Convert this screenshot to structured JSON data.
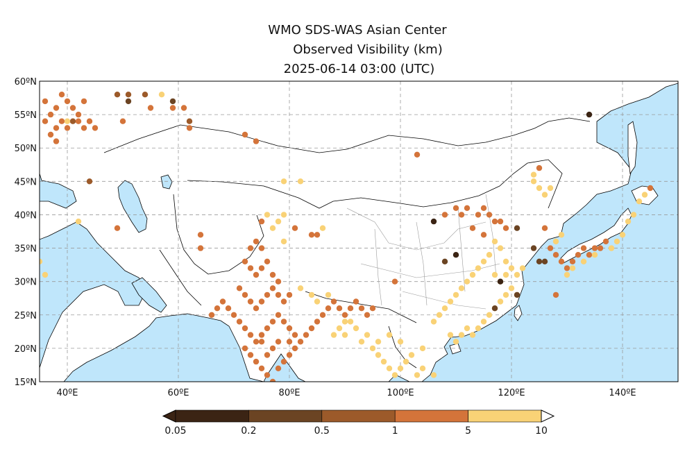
{
  "title": {
    "line1": "WMO SDS-WAS Asian Center",
    "line2": "Observed Visibility (km)",
    "line3": "2025-06-14 03:00 (UTC)"
  },
  "map": {
    "lon_range": [
      35,
      150
    ],
    "lat_range": [
      15,
      60
    ],
    "lat_ticks": [
      {
        "value": 60,
        "label": "60ºN"
      },
      {
        "value": 55,
        "label": "55ºN"
      },
      {
        "value": 50,
        "label": "50ºN"
      },
      {
        "value": 45,
        "label": "45ºN"
      },
      {
        "value": 40,
        "label": "40ºN"
      },
      {
        "value": 35,
        "label": "35ºN"
      },
      {
        "value": 30,
        "label": "30ºN"
      },
      {
        "value": 25,
        "label": "25ºN"
      },
      {
        "value": 20,
        "label": "20ºN"
      },
      {
        "value": 15,
        "label": "15ºN"
      }
    ],
    "lon_ticks": [
      {
        "value": 40,
        "label": "40ºE"
      },
      {
        "value": 60,
        "label": "60ºE"
      },
      {
        "value": 80,
        "label": "80ºE"
      },
      {
        "value": 100,
        "label": "100ºE"
      },
      {
        "value": 120,
        "label": "120ºE"
      },
      {
        "value": 140,
        "label": "140ºE"
      }
    ],
    "ocean_color": "#bfe6fb",
    "land_color": "#ffffff"
  },
  "legend": {
    "labels": [
      "0.05",
      "0.2",
      "0.5",
      "1",
      "5",
      "10"
    ],
    "colors": [
      "#3b2414",
      "#6b4423",
      "#9c5a2a",
      "#d4743a",
      "#f9d276"
    ]
  },
  "chart_data": {
    "type": "scatter",
    "title": "Observed Visibility (km)",
    "xlabel": "",
    "ylabel": "",
    "xlim": [
      35,
      150
    ],
    "ylim": [
      15,
      60
    ],
    "categories": [
      "<0.2",
      "0.2-0.5",
      "0.5-1",
      "1-5",
      "5-10"
    ],
    "colors": [
      "#3b2414",
      "#6b4423",
      "#9c5a2a",
      "#d4743a",
      "#f9d276"
    ],
    "points": [
      [
        36,
        57,
        3
      ],
      [
        37,
        55,
        3
      ],
      [
        38,
        56,
        3
      ],
      [
        39,
        58,
        3
      ],
      [
        40,
        57,
        3
      ],
      [
        41,
        56,
        3
      ],
      [
        42,
        55,
        3
      ],
      [
        43,
        57,
        3
      ],
      [
        37,
        52,
        3
      ],
      [
        38,
        53,
        3
      ],
      [
        39,
        54,
        3
      ],
      [
        40,
        53,
        3
      ],
      [
        41,
        54,
        2
      ],
      [
        42,
        54,
        3
      ],
      [
        43,
        53,
        3
      ],
      [
        44,
        54,
        3
      ],
      [
        45,
        53,
        3
      ],
      [
        36,
        54,
        3
      ],
      [
        38,
        51,
        3
      ],
      [
        40,
        54,
        4
      ],
      [
        44,
        45,
        2
      ],
      [
        42,
        39,
        4
      ],
      [
        49,
        58,
        2
      ],
      [
        51,
        58,
        2
      ],
      [
        51,
        57,
        1
      ],
      [
        54,
        58,
        2
      ],
      [
        55,
        56,
        3
      ],
      [
        57,
        58,
        4
      ],
      [
        59,
        57,
        1
      ],
      [
        59,
        56,
        3
      ],
      [
        61,
        56,
        3
      ],
      [
        62,
        53,
        3
      ],
      [
        62,
        54,
        2
      ],
      [
        72,
        52,
        3
      ],
      [
        74,
        51,
        3
      ],
      [
        49,
        38,
        3
      ],
      [
        50,
        54,
        3
      ],
      [
        35,
        33,
        4
      ],
      [
        36,
        31,
        4
      ],
      [
        103,
        49,
        3
      ],
      [
        79,
        45,
        4
      ],
      [
        82,
        45,
        4
      ],
      [
        81,
        38,
        3
      ],
      [
        84,
        37,
        3
      ],
      [
        85,
        37,
        3
      ],
      [
        86,
        38,
        4
      ],
      [
        79,
        40,
        4
      ],
      [
        78,
        39,
        4
      ],
      [
        76,
        40,
        4
      ],
      [
        77,
        38,
        4
      ],
      [
        79,
        36,
        4
      ],
      [
        75,
        39,
        3
      ],
      [
        64,
        37,
        3
      ],
      [
        64,
        35,
        3
      ],
      [
        73,
        35,
        3
      ],
      [
        74,
        36,
        3
      ],
      [
        75,
        35,
        3
      ],
      [
        72,
        33,
        3
      ],
      [
        73,
        32,
        3
      ],
      [
        74,
        31,
        3
      ],
      [
        75,
        32,
        3
      ],
      [
        76,
        33,
        3
      ],
      [
        77,
        31,
        3
      ],
      [
        78,
        30,
        3
      ],
      [
        71,
        29,
        3
      ],
      [
        72,
        28,
        3
      ],
      [
        73,
        27,
        3
      ],
      [
        74,
        26,
        3
      ],
      [
        75,
        27,
        3
      ],
      [
        76,
        28,
        3
      ],
      [
        77,
        29,
        3
      ],
      [
        78,
        28,
        3
      ],
      [
        79,
        27,
        3
      ],
      [
        80,
        28,
        3
      ],
      [
        69,
        26,
        3
      ],
      [
        70,
        25,
        3
      ],
      [
        71,
        24,
        3
      ],
      [
        72,
        23,
        3
      ],
      [
        73,
        22,
        3
      ],
      [
        74,
        21,
        3
      ],
      [
        75,
        22,
        3
      ],
      [
        76,
        23,
        3
      ],
      [
        77,
        24,
        3
      ],
      [
        78,
        25,
        3
      ],
      [
        79,
        24,
        3
      ],
      [
        80,
        23,
        3
      ],
      [
        81,
        22,
        3
      ],
      [
        82,
        21,
        3
      ],
      [
        83,
        22,
        3
      ],
      [
        84,
        23,
        3
      ],
      [
        85,
        24,
        3
      ],
      [
        86,
        25,
        3
      ],
      [
        87,
        26,
        3
      ],
      [
        88,
        27,
        3
      ],
      [
        89,
        26,
        3
      ],
      [
        90,
        25,
        3
      ],
      [
        91,
        26,
        3
      ],
      [
        92,
        27,
        3
      ],
      [
        93,
        26,
        3
      ],
      [
        94,
        25,
        3
      ],
      [
        95,
        26,
        3
      ],
      [
        72,
        20,
        3
      ],
      [
        73,
        19,
        3
      ],
      [
        74,
        18,
        3
      ],
      [
        75,
        17,
        3
      ],
      [
        76,
        16,
        3
      ],
      [
        77,
        15,
        3
      ],
      [
        78,
        17,
        3
      ],
      [
        79,
        18,
        3
      ],
      [
        80,
        19,
        3
      ],
      [
        81,
        20,
        3
      ],
      [
        77,
        20,
        3
      ],
      [
        76,
        19,
        3
      ],
      [
        75,
        21,
        3
      ],
      [
        78,
        21,
        3
      ],
      [
        80,
        21,
        3
      ],
      [
        66,
        25,
        3
      ],
      [
        67,
        26,
        3
      ],
      [
        68,
        27,
        3
      ],
      [
        85,
        27,
        4
      ],
      [
        87,
        28,
        4
      ],
      [
        82,
        29,
        4
      ],
      [
        84,
        28,
        4
      ],
      [
        89,
        23,
        4
      ],
      [
        88,
        22,
        4
      ],
      [
        90,
        22,
        4
      ],
      [
        92,
        23,
        4
      ],
      [
        94,
        22,
        4
      ],
      [
        93,
        21,
        4
      ],
      [
        95,
        20,
        4
      ],
      [
        96,
        19,
        4
      ],
      [
        97,
        18,
        4
      ],
      [
        98,
        17,
        4
      ],
      [
        99,
        16,
        4
      ],
      [
        100,
        17,
        4
      ],
      [
        101,
        18,
        4
      ],
      [
        96,
        21,
        4
      ],
      [
        98,
        22,
        4
      ],
      [
        100,
        21,
        4
      ],
      [
        102,
        19,
        4
      ],
      [
        103,
        16,
        4
      ],
      [
        104,
        17,
        4
      ],
      [
        106,
        16,
        4
      ],
      [
        104,
        20,
        4
      ],
      [
        91,
        24,
        4
      ],
      [
        90,
        24,
        4
      ],
      [
        99,
        30,
        3
      ],
      [
        108,
        40,
        3
      ],
      [
        110,
        41,
        3
      ],
      [
        111,
        40,
        3
      ],
      [
        112,
        41,
        3
      ],
      [
        114,
        40,
        3
      ],
      [
        115,
        41,
        3
      ],
      [
        116,
        40,
        3
      ],
      [
        117,
        39,
        3
      ],
      [
        118,
        39,
        3
      ],
      [
        119,
        38,
        3
      ],
      [
        113,
        38,
        3
      ],
      [
        115,
        37,
        3
      ],
      [
        117,
        36,
        4
      ],
      [
        118,
        35,
        4
      ],
      [
        119,
        33,
        4
      ],
      [
        120,
        32,
        4
      ],
      [
        121,
        31,
        4
      ],
      [
        122,
        32,
        4
      ],
      [
        116,
        34,
        4
      ],
      [
        115,
        33,
        4
      ],
      [
        114,
        32,
        4
      ],
      [
        113,
        31,
        4
      ],
      [
        112,
        30,
        4
      ],
      [
        111,
        29,
        4
      ],
      [
        110,
        28,
        4
      ],
      [
        109,
        27,
        4
      ],
      [
        108,
        26,
        4
      ],
      [
        107,
        25,
        4
      ],
      [
        106,
        24,
        4
      ],
      [
        112,
        23,
        4
      ],
      [
        113,
        22,
        4
      ],
      [
        114,
        23,
        4
      ],
      [
        115,
        24,
        4
      ],
      [
        116,
        25,
        4
      ],
      [
        117,
        26,
        4
      ],
      [
        118,
        27,
        4
      ],
      [
        119,
        28,
        4
      ],
      [
        120,
        29,
        4
      ],
      [
        121,
        28,
        4
      ],
      [
        117,
        31,
        4
      ],
      [
        118,
        30,
        4
      ],
      [
        119,
        31,
        4
      ],
      [
        109,
        22,
        4
      ],
      [
        110,
        21,
        4
      ],
      [
        111,
        22,
        4
      ],
      [
        106,
        39,
        0
      ],
      [
        110,
        34,
        0
      ],
      [
        108,
        33,
        1
      ],
      [
        118,
        30,
        0
      ],
      [
        117,
        26,
        1
      ],
      [
        124,
        35,
        1
      ],
      [
        125,
        33,
        1
      ],
      [
        126,
        33,
        1
      ],
      [
        121,
        38,
        1
      ],
      [
        121,
        28,
        1
      ],
      [
        125,
        47,
        3
      ],
      [
        124,
        46,
        4
      ],
      [
        124,
        45,
        4
      ],
      [
        125,
        44,
        4
      ],
      [
        126,
        43,
        4
      ],
      [
        127,
        44,
        4
      ],
      [
        126,
        38,
        3
      ],
      [
        127,
        35,
        3
      ],
      [
        128,
        34,
        3
      ],
      [
        129,
        33,
        3
      ],
      [
        130,
        32,
        3
      ],
      [
        131,
        33,
        3
      ],
      [
        132,
        34,
        3
      ],
      [
        133,
        35,
        3
      ],
      [
        134,
        34,
        3
      ],
      [
        135,
        35,
        3
      ],
      [
        136,
        35,
        3
      ],
      [
        137,
        36,
        3
      ],
      [
        139,
        36,
        4
      ],
      [
        140,
        37,
        4
      ],
      [
        141,
        39,
        4
      ],
      [
        142,
        40,
        4
      ],
      [
        143,
        42,
        4
      ],
      [
        144,
        43,
        4
      ],
      [
        145,
        44,
        3
      ],
      [
        130,
        31,
        4
      ],
      [
        131,
        32,
        4
      ],
      [
        133,
        33,
        4
      ],
      [
        135,
        34,
        4
      ],
      [
        138,
        35,
        4
      ],
      [
        128,
        36,
        4
      ],
      [
        129,
        37,
        4
      ],
      [
        128,
        28,
        3
      ],
      [
        134,
        55,
        0
      ]
    ]
  }
}
